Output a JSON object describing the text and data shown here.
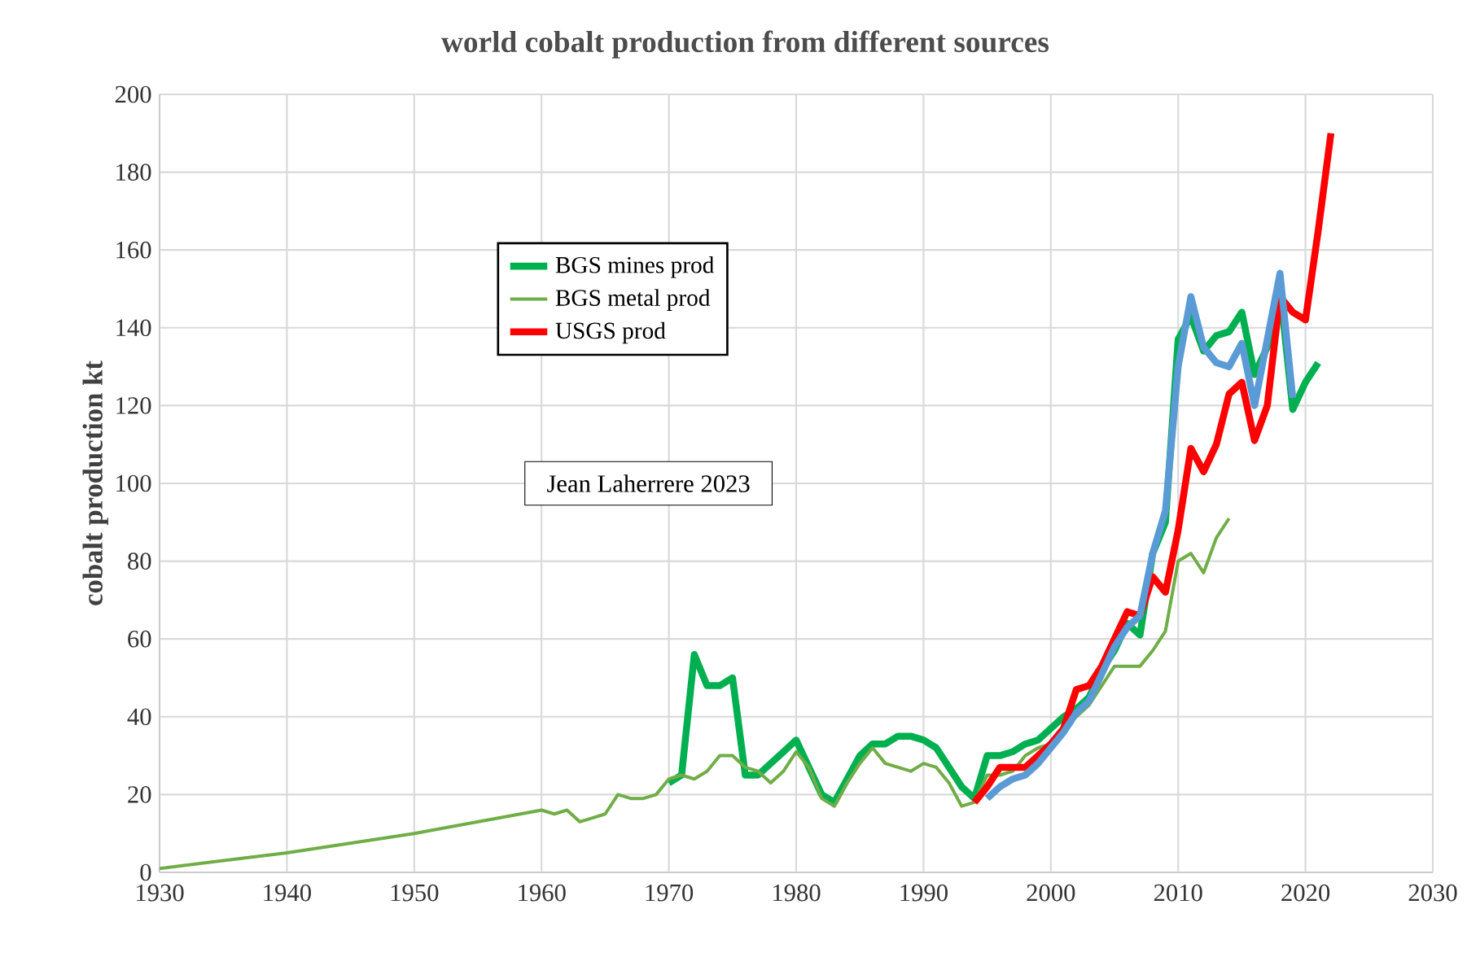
{
  "chart_data": {
    "type": "line",
    "title": "world cobalt production from different sources",
    "ylabel": "cobalt production kt",
    "annotations": [
      "Jean Laherrere 2023"
    ],
    "xlim": [
      1930,
      2030
    ],
    "xticks": [
      1930,
      1940,
      1950,
      1960,
      1970,
      1980,
      1990,
      2000,
      2010,
      2020,
      2030
    ],
    "ylim": [
      0,
      200
    ],
    "yticks": [
      0,
      20,
      40,
      60,
      80,
      100,
      120,
      140,
      160,
      180,
      200
    ],
    "grid": true,
    "legend": "top left",
    "marker": "none",
    "line_style": "solid",
    "series": [
      {
        "name": "BGS mines  prod",
        "color": "#00b050",
        "x": [
          1970,
          1971,
          1972,
          1973,
          1974,
          1975,
          1976,
          1977,
          1978,
          1979,
          1980,
          1981,
          1982,
          1983,
          1984,
          1985,
          1986,
          1987,
          1988,
          1989,
          1990,
          1991,
          1992,
          1993,
          1994,
          1995,
          1996,
          1997,
          1998,
          1999,
          2000,
          2001,
          2002,
          2003,
          2004,
          2005,
          2006,
          2007,
          2008,
          2009,
          2010,
          2011,
          2012,
          2013,
          2014,
          2015,
          2016,
          2017,
          2018,
          2019,
          2020,
          2021
        ],
        "values": [
          23,
          25,
          56,
          48,
          48,
          50,
          25,
          25,
          28,
          31,
          34,
          27,
          20,
          18,
          24,
          30,
          33,
          33,
          35,
          35,
          34,
          32,
          27,
          22,
          19,
          30,
          30,
          31,
          33,
          34,
          37,
          40,
          42,
          45,
          52,
          57,
          64,
          61,
          82,
          90,
          137,
          143,
          134,
          138,
          139,
          144,
          128,
          135,
          150,
          119,
          126,
          131
        ]
      },
      {
        "name": "BGS metal prod",
        "color": "#70ad47",
        "x": [
          1930,
          1940,
          1950,
          1960,
          1961,
          1962,
          1963,
          1964,
          1965,
          1966,
          1967,
          1968,
          1969,
          1970,
          1971,
          1972,
          1973,
          1974,
          1975,
          1976,
          1977,
          1978,
          1979,
          1980,
          1981,
          1982,
          1983,
          1984,
          1985,
          1986,
          1987,
          1988,
          1989,
          1990,
          1991,
          1992,
          1993,
          1994,
          1995,
          1996,
          1997,
          1998,
          1999,
          2000,
          2001,
          2002,
          2003,
          2004,
          2005,
          2006,
          2007,
          2008,
          2009,
          2010,
          2011,
          2012,
          2013,
          2014
        ],
        "values": [
          1,
          5,
          10,
          16,
          15,
          16,
          13,
          14,
          15,
          20,
          19,
          19,
          20,
          24,
          25,
          24,
          26,
          30,
          30,
          27,
          26,
          23,
          26,
          31,
          27,
          19,
          17,
          23,
          28,
          32,
          28,
          27,
          26,
          28,
          27,
          23,
          17,
          18,
          25,
          25,
          26,
          30,
          32,
          33,
          37,
          40,
          43,
          48,
          53,
          53,
          53,
          57,
          62,
          80,
          82,
          77,
          86,
          91
        ]
      },
      {
        "name": "USGS  prod",
        "color": "#ff0000",
        "x": [
          1994,
          1995,
          1996,
          1997,
          1998,
          1999,
          2000,
          2001,
          2002,
          2003,
          2004,
          2005,
          2006,
          2007,
          2008,
          2009,
          2010,
          2011,
          2012,
          2013,
          2014,
          2015,
          2016,
          2017,
          2018,
          2019,
          2020,
          2021,
          2022
        ],
        "values": [
          18,
          22,
          27,
          27,
          27,
          30,
          33,
          37,
          47,
          48,
          53,
          60,
          67,
          66,
          76,
          72,
          88,
          109,
          103,
          110,
          123,
          126,
          111,
          120,
          148,
          144,
          142,
          165,
          190
        ]
      },
      {
        "color": "#5b9bd5",
        "x": [
          1995,
          1996,
          1997,
          1998,
          1999,
          2000,
          2001,
          2002,
          2003,
          2004,
          2005,
          2006,
          2007,
          2008,
          2009,
          2010,
          2011,
          2012,
          2013,
          2014,
          2015,
          2016,
          2017,
          2018,
          2019
        ],
        "values": [
          19,
          22,
          24,
          25,
          28,
          32,
          36,
          41,
          44,
          51,
          58,
          63,
          66,
          82,
          93,
          130,
          148,
          135,
          131,
          130,
          136,
          120,
          137,
          154,
          122
        ]
      }
    ]
  }
}
